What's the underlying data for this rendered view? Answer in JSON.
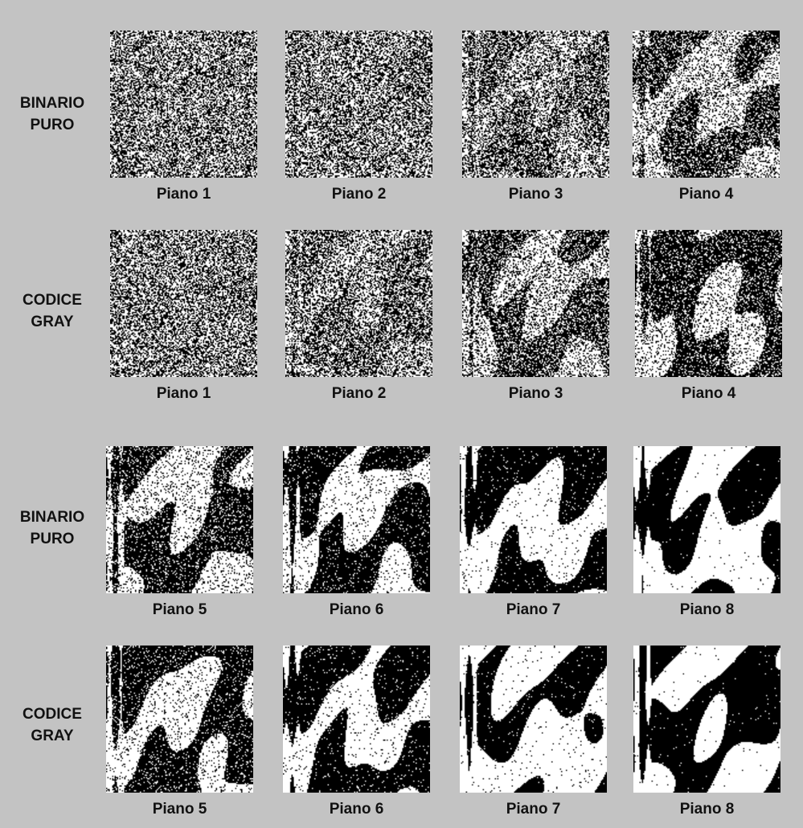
{
  "row_labels": [
    {
      "line1": "BINARIO",
      "line2": "PURO"
    },
    {
      "line1": "CODICE",
      "line2": "GRAY"
    },
    {
      "line1": "BINARIO",
      "line2": "PURO"
    },
    {
      "line1": "CODICE",
      "line2": "GRAY"
    }
  ],
  "rows": [
    {
      "planes": [
        {
          "label": "Piano 1",
          "noise": 0.98,
          "dark": 0.5
        },
        {
          "label": "Piano 2",
          "noise": 0.93,
          "dark": 0.5
        },
        {
          "label": "Piano 3",
          "noise": 0.78,
          "dark": 0.5
        },
        {
          "label": "Piano 4",
          "noise": 0.55,
          "dark": 0.52
        }
      ]
    },
    {
      "planes": [
        {
          "label": "Piano 1",
          "noise": 0.97,
          "dark": 0.5
        },
        {
          "label": "Piano 2",
          "noise": 0.82,
          "dark": 0.5
        },
        {
          "label": "Piano 3",
          "noise": 0.6,
          "dark": 0.52
        },
        {
          "label": "Piano 4",
          "noise": 0.42,
          "dark": 0.5
        }
      ]
    },
    {
      "planes": [
        {
          "label": "Piano 5",
          "noise": 0.32,
          "dark": 0.5
        },
        {
          "label": "Piano 6",
          "noise": 0.18,
          "dark": 0.52
        },
        {
          "label": "Piano 7",
          "noise": 0.08,
          "dark": 0.45
        },
        {
          "label": "Piano 8",
          "noise": 0.02,
          "dark": 0.5
        }
      ]
    },
    {
      "planes": [
        {
          "label": "Piano 5",
          "noise": 0.22,
          "dark": 0.5
        },
        {
          "label": "Piano 6",
          "noise": 0.1,
          "dark": 0.55
        },
        {
          "label": "Piano 7",
          "noise": 0.05,
          "dark": 0.38
        },
        {
          "label": "Piano 8",
          "noise": 0.02,
          "dark": 0.5
        }
      ]
    }
  ],
  "colors": {
    "background": "#c3c3c3",
    "ink": "#000000",
    "paper": "#ffffff"
  }
}
